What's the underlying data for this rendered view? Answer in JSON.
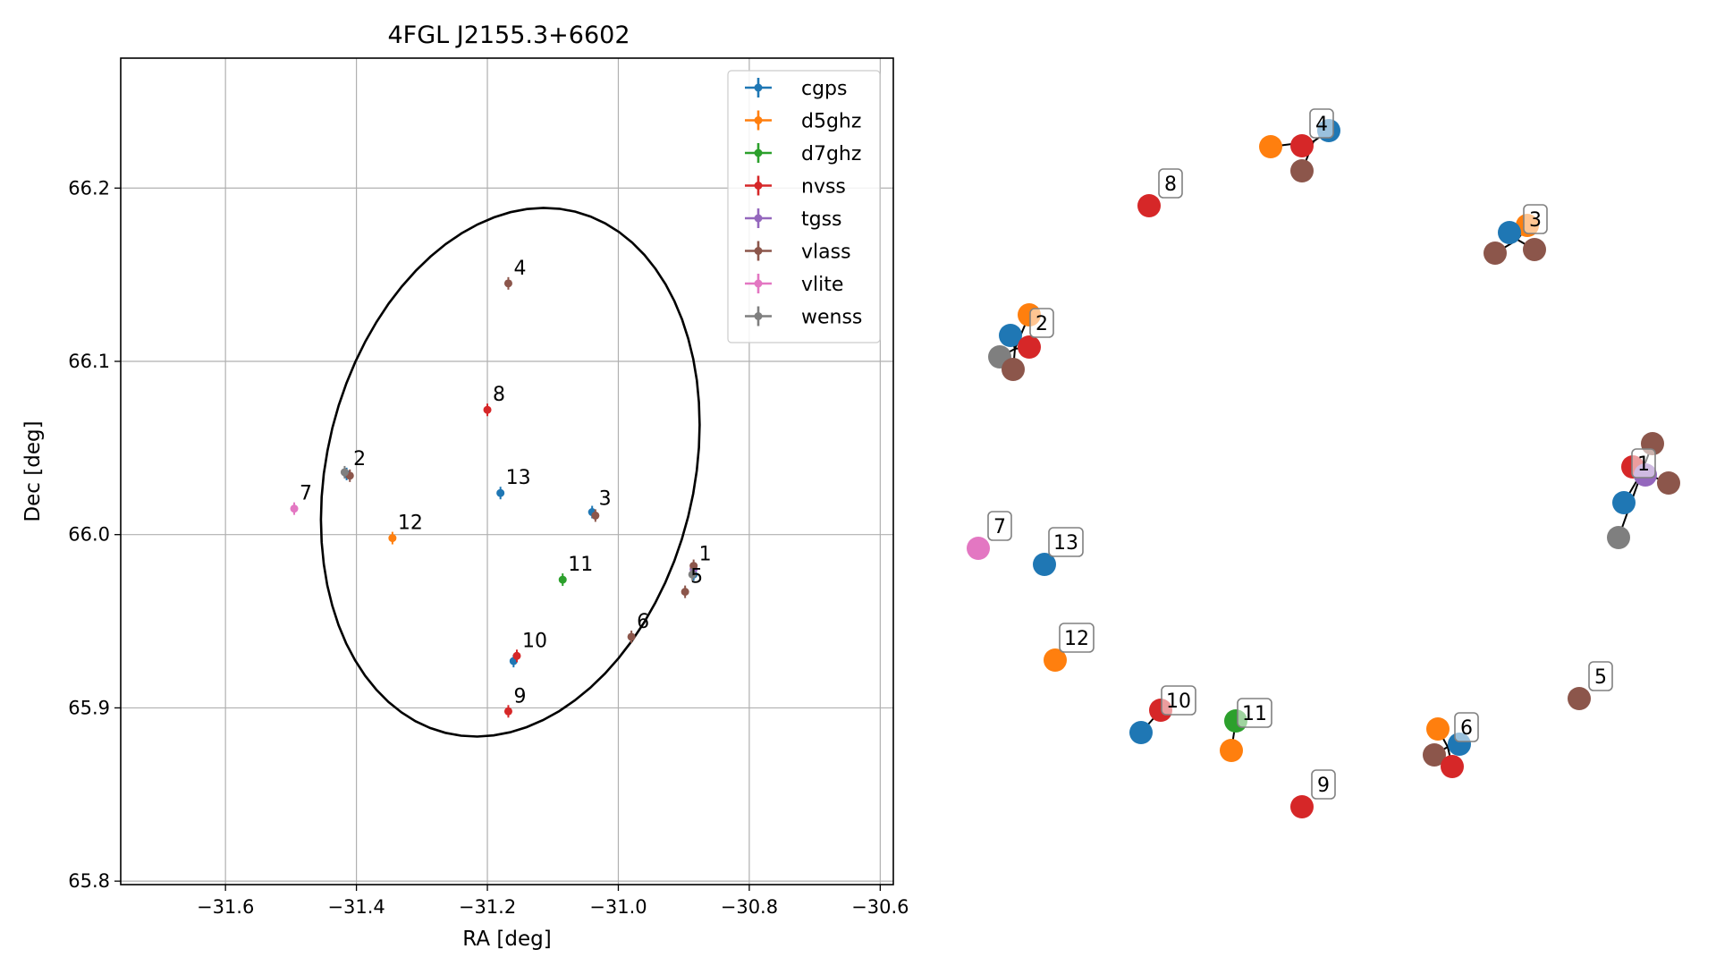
{
  "colors": {
    "cgps": "#1f77b4",
    "d5ghz": "#ff7f0e",
    "d7ghz": "#2ca02c",
    "nvss": "#d62728",
    "tgss": "#9467bd",
    "vlass": "#8c564b",
    "vlite": "#e377c2",
    "wenss": "#7f7f7f"
  },
  "chart_data": [
    {
      "type": "scatter",
      "title": "4FGL J2155.3+6602",
      "xlabel": "RA [deg]",
      "ylabel": "Dec [deg]",
      "xlim": [
        -31.76,
        -30.58
      ],
      "ylim": [
        65.798,
        66.275
      ],
      "grid": true,
      "legend_position": "top-right",
      "x_ticks": [
        -31.6,
        -31.4,
        -31.2,
        -31.0,
        -30.8,
        -30.6
      ],
      "x_tick_labels": [
        "−31.6",
        "−31.4",
        "−31.2",
        "−31.0",
        "−30.8",
        "−30.6"
      ],
      "y_ticks": [
        65.8,
        65.9,
        66.0,
        66.1,
        66.2
      ],
      "y_tick_labels": [
        "65.8",
        "65.9",
        "66.0",
        "66.1",
        "66.2"
      ],
      "ellipse": {
        "center": [
          -31.165,
          66.036
        ],
        "ra_semi": 0.28,
        "dec_semi": 0.155,
        "tilt_deg": 14
      },
      "series": [
        {
          "name": "cgps",
          "points": [
            [
              -30.885,
              65.977
            ],
            [
              -31.415,
              66.035
            ],
            [
              -31.04,
              66.013
            ],
            [
              -31.16,
              65.927
            ],
            [
              -31.18,
              66.024
            ]
          ]
        },
        {
          "name": "d5ghz",
          "points": [
            [
              -31.345,
              65.998
            ]
          ]
        },
        {
          "name": "d7ghz",
          "points": [
            [
              -31.085,
              65.974
            ]
          ]
        },
        {
          "name": "nvss",
          "points": [
            [
              -31.2,
              66.072
            ],
            [
              -31.155,
              65.93
            ],
            [
              -31.168,
              65.898
            ]
          ]
        },
        {
          "name": "tgss",
          "points": [
            [
              -30.885,
              65.98
            ]
          ]
        },
        {
          "name": "vlass",
          "points": [
            [
              -30.885,
              65.982
            ],
            [
              -31.41,
              66.034
            ],
            [
              -31.035,
              66.011
            ],
            [
              -31.168,
              66.145
            ],
            [
              -30.898,
              65.967
            ],
            [
              -30.98,
              65.941
            ]
          ]
        },
        {
          "name": "vlite",
          "points": [
            [
              -31.495,
              66.015
            ]
          ]
        },
        {
          "name": "wenss",
          "points": [
            [
              -30.887,
              65.977
            ],
            [
              -31.418,
              66.036
            ]
          ]
        }
      ],
      "point_labels": [
        {
          "text": "1",
          "x": -30.885,
          "y": 65.98
        },
        {
          "text": "2",
          "x": -31.413,
          "y": 66.035
        },
        {
          "text": "3",
          "x": -31.038,
          "y": 66.012
        },
        {
          "text": "4",
          "x": -31.168,
          "y": 66.145
        },
        {
          "text": "5",
          "x": -30.898,
          "y": 65.967
        },
        {
          "text": "6",
          "x": -30.98,
          "y": 65.941
        },
        {
          "text": "7",
          "x": -31.495,
          "y": 66.015
        },
        {
          "text": "8",
          "x": -31.2,
          "y": 66.072
        },
        {
          "text": "9",
          "x": -31.168,
          "y": 65.898
        },
        {
          "text": "10",
          "x": -31.155,
          "y": 65.93
        },
        {
          "text": "11",
          "x": -31.085,
          "y": 65.974
        },
        {
          "text": "12",
          "x": -31.345,
          "y": 65.998
        },
        {
          "text": "13",
          "x": -31.18,
          "y": 66.024
        }
      ]
    },
    {
      "type": "scatter",
      "title": "",
      "axes": "off",
      "groups": [
        {
          "label": "1",
          "members": [
            "vlass",
            "nvss",
            "tgss",
            "vlass",
            "cgps",
            "wenss"
          ]
        },
        {
          "label": "2",
          "members": [
            "d5ghz",
            "cgps",
            "nvss",
            "wenss",
            "vlass"
          ]
        },
        {
          "label": "3",
          "members": [
            "d5ghz",
            "cgps",
            "vlass",
            "vlass"
          ]
        },
        {
          "label": "4",
          "members": [
            "d5ghz",
            "nvss",
            "cgps",
            "vlass"
          ]
        },
        {
          "label": "5",
          "members": [
            "vlass"
          ]
        },
        {
          "label": "6",
          "members": [
            "d5ghz",
            "cgps",
            "vlass",
            "nvss"
          ]
        },
        {
          "label": "7",
          "members": [
            "vlite"
          ]
        },
        {
          "label": "8",
          "members": [
            "nvss"
          ]
        },
        {
          "label": "9",
          "members": [
            "nvss"
          ]
        },
        {
          "label": "10",
          "members": [
            "cgps",
            "nvss"
          ]
        },
        {
          "label": "11",
          "members": [
            "d7ghz",
            "d5ghz"
          ]
        },
        {
          "label": "12",
          "members": [
            "d5ghz"
          ]
        },
        {
          "label": "13",
          "members": [
            "cgps"
          ]
        }
      ]
    }
  ]
}
